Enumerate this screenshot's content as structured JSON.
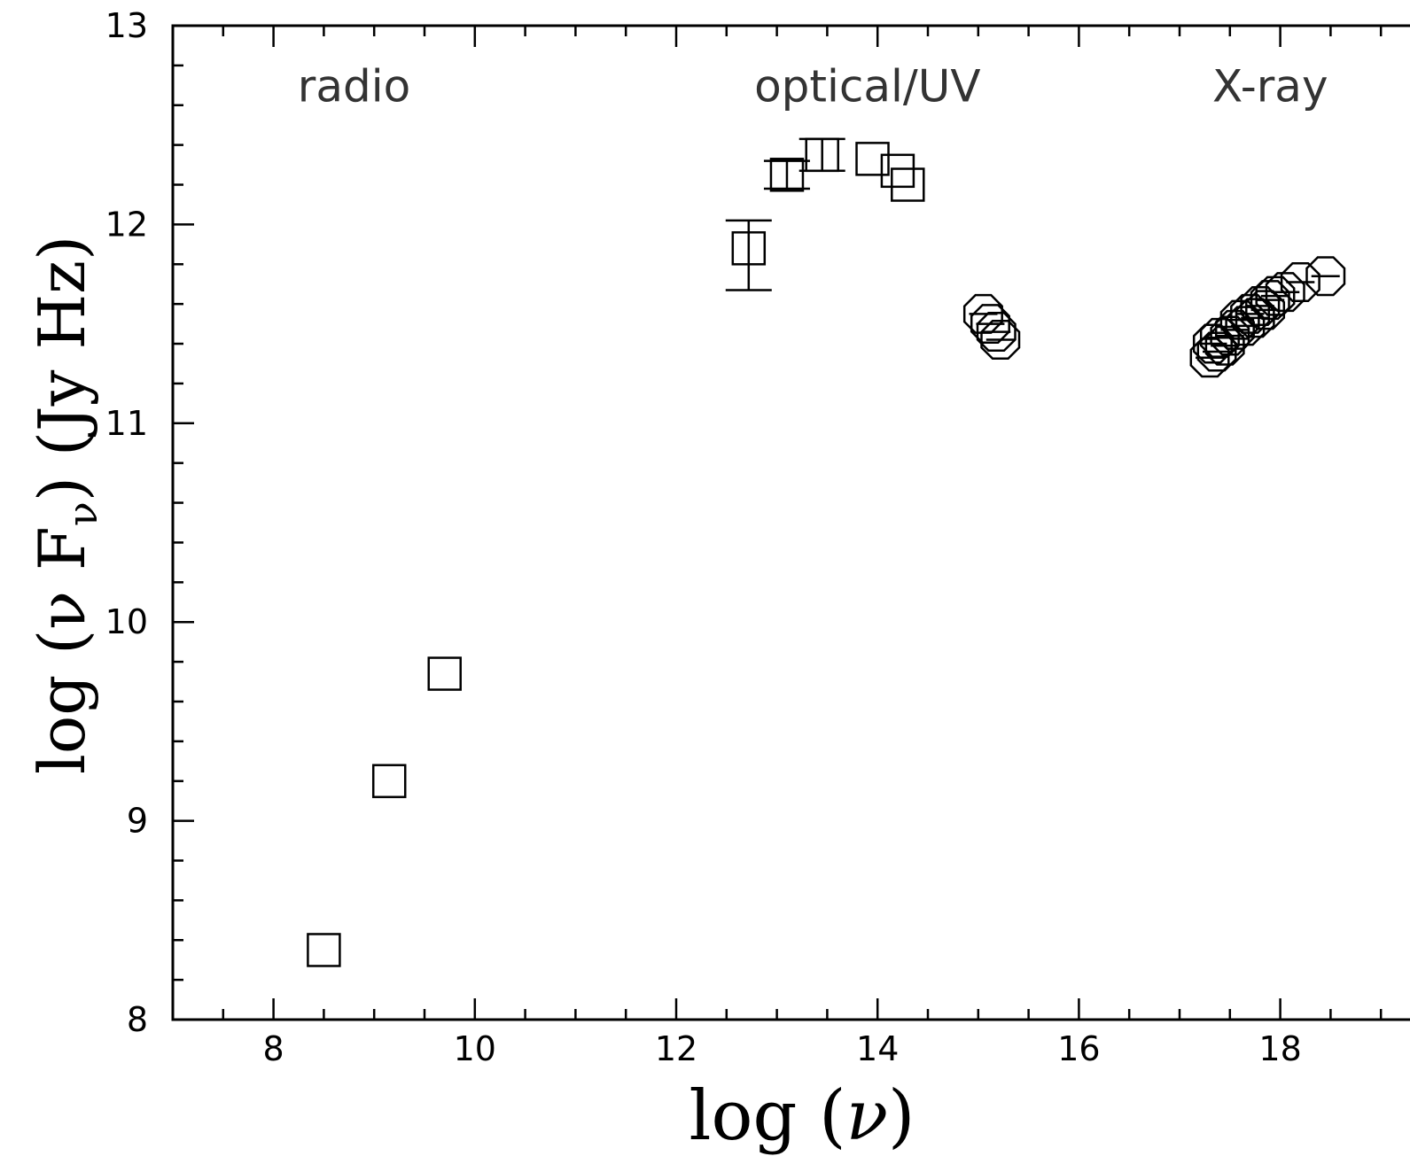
{
  "chart_data": {
    "type": "scatter",
    "title": "",
    "xlabel_prefix": "log (",
    "xlabel_symbol": "ν",
    "xlabel_suffix": ")",
    "ylabel_prefix": "log (ν F",
    "ylabel_sub": "ν",
    "ylabel_suffix": ")   (Jy Hz)",
    "xlim": [
      7,
      19.5
    ],
    "ylim": [
      8,
      13
    ],
    "x_ticks": [
      8,
      10,
      12,
      14,
      16,
      18
    ],
    "y_ticks": [
      8,
      9,
      10,
      11,
      12,
      13
    ],
    "region_labels": [
      {
        "text": "radio",
        "x": 8.8,
        "y": 12.7
      },
      {
        "text": "optical/UV",
        "x": 13.9,
        "y": 12.7
      },
      {
        "text": "X-ray",
        "x": 17.9,
        "y": 12.7
      }
    ],
    "series": [
      {
        "marker": "square",
        "points": [
          {
            "x": 8.5,
            "y": 8.35
          },
          {
            "x": 9.15,
            "y": 9.2
          },
          {
            "x": 9.7,
            "y": 9.74
          },
          {
            "x": 12.72,
            "y": 11.88,
            "err_lo": 0.21,
            "err_hi": 0.14
          },
          {
            "x": 13.1,
            "y": 12.25,
            "err_lo": 0.07,
            "err_hi": 0.07
          },
          {
            "x": 13.45,
            "y": 12.35,
            "err_lo": 0.08,
            "err_hi": 0.08
          },
          {
            "x": 13.95,
            "y": 12.33
          },
          {
            "x": 14.2,
            "y": 12.27
          },
          {
            "x": 14.3,
            "y": 12.2
          }
        ]
      },
      {
        "marker": "circle",
        "points": [
          {
            "x": 15.05,
            "y": 11.55
          },
          {
            "x": 15.12,
            "y": 11.5
          },
          {
            "x": 15.18,
            "y": 11.46
          },
          {
            "x": 15.22,
            "y": 11.42
          },
          {
            "x": 17.3,
            "y": 11.33
          },
          {
            "x": 17.33,
            "y": 11.4
          },
          {
            "x": 17.37,
            "y": 11.36
          },
          {
            "x": 17.4,
            "y": 11.43
          },
          {
            "x": 17.45,
            "y": 11.39
          },
          {
            "x": 17.5,
            "y": 11.44
          },
          {
            "x": 17.55,
            "y": 11.47
          },
          {
            "x": 17.6,
            "y": 11.52
          },
          {
            "x": 17.65,
            "y": 11.49
          },
          {
            "x": 17.7,
            "y": 11.55
          },
          {
            "x": 17.75,
            "y": 11.53
          },
          {
            "x": 17.8,
            "y": 11.59
          },
          {
            "x": 17.85,
            "y": 11.57
          },
          {
            "x": 17.9,
            "y": 11.62
          },
          {
            "x": 17.95,
            "y": 11.64
          },
          {
            "x": 18.05,
            "y": 11.66
          },
          {
            "x": 18.2,
            "y": 11.71
          },
          {
            "x": 18.45,
            "y": 11.74
          }
        ]
      }
    ]
  }
}
